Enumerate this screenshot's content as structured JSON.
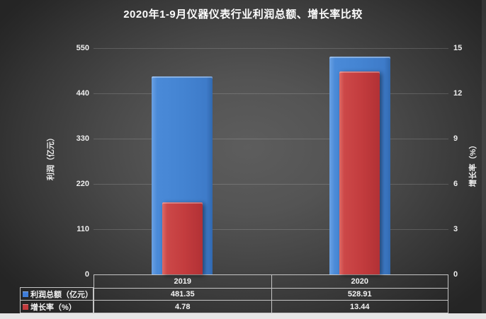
{
  "title": "2020年1-9月仪器仪表行业利润总额、增长率比较",
  "chart_data": {
    "type": "bar",
    "categories": [
      "2019",
      "2020"
    ],
    "series": [
      {
        "name": "利润总额（亿元）",
        "axis": "left",
        "color": "#4484d2",
        "values": [
          481.35,
          528.91
        ]
      },
      {
        "name": "增长率（%）",
        "axis": "right",
        "color": "#c33c3e",
        "values": [
          4.78,
          13.44
        ]
      }
    ],
    "left_axis": {
      "title": "利润（亿元）",
      "min": 0,
      "max": 550,
      "ticks": [
        550,
        440,
        330,
        220,
        110,
        0
      ]
    },
    "right_axis": {
      "title": "增长率（%）",
      "min": 0,
      "max": 15,
      "ticks": [
        15,
        12,
        9,
        6,
        3,
        0
      ]
    },
    "grid": true,
    "legend_position": "bottom-left",
    "data_table_values": [
      [
        "481.35",
        "528.91"
      ],
      [
        "4.78",
        "13.44"
      ]
    ]
  },
  "colors": {
    "profit_bar": "#4484d2",
    "growth_bar": "#c33c3e",
    "background_center": "#5a5a5a",
    "background_edge": "#252525",
    "gridline": "#6e6e6e",
    "table_border": "#c4c4c4",
    "text": "#f2f2f2"
  }
}
